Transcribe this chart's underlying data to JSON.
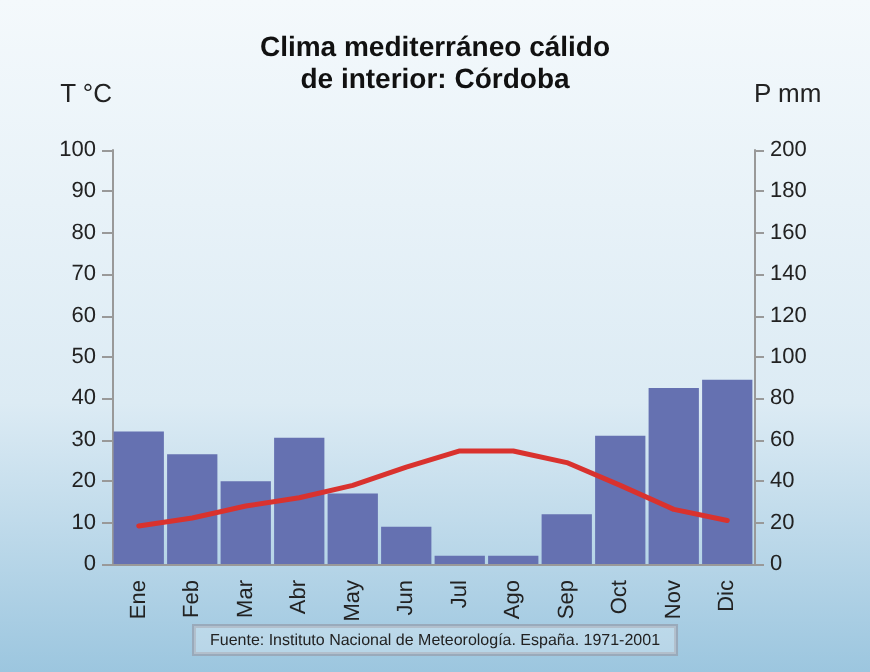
{
  "chart_data": {
    "type": "bar",
    "title": "Clima mediterráneo cálido\nde interior: Córdoba",
    "ylabel": "T °C",
    "y2label": "P mm",
    "categories": [
      "Ene",
      "Feb",
      "Mar",
      "Abr",
      "May",
      "Jun",
      "Jul",
      "Ago",
      "Sep",
      "Oct",
      "Nov",
      "Dic"
    ],
    "series": [
      {
        "axis": "y2",
        "color": "#6571b1",
        "values": [
          64,
          53,
          40,
          61,
          34,
          18,
          4,
          4,
          24,
          62,
          85,
          89
        ]
      },
      {
        "type": "line",
        "axis": "y",
        "color": "#d9322e",
        "values": [
          9.2,
          11.1,
          14,
          16,
          19,
          23.4,
          27.3,
          27.3,
          24.5,
          19,
          13.2,
          10.5
        ]
      }
    ],
    "ylim": [
      0,
      100
    ],
    "yticks": [
      0,
      10,
      20,
      30,
      40,
      50,
      60,
      70,
      80,
      90,
      100
    ],
    "y2lim": [
      0,
      200
    ],
    "y2ticks": [
      0,
      20,
      40,
      60,
      80,
      100,
      120,
      140,
      160,
      180,
      200
    ],
    "annotations": [
      "Fuente: Instituto Nacional de Meteorología. España. 1971-2001"
    ],
    "grid": false,
    "marker": "none",
    "line_style": "solid"
  }
}
